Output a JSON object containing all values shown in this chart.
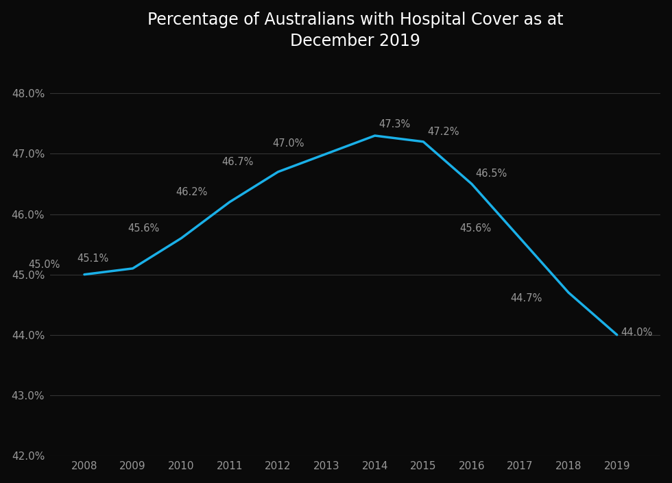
{
  "title": "Percentage of Australians with Hospital Cover as at\nDecember 2019",
  "years": [
    2008,
    2009,
    2010,
    2011,
    2012,
    2013,
    2014,
    2015,
    2016,
    2017,
    2018,
    2019
  ],
  "values": [
    45.0,
    45.1,
    45.6,
    46.2,
    46.7,
    47.0,
    47.3,
    47.2,
    46.5,
    45.6,
    44.7,
    44.0
  ],
  "labels": [
    "45.0%",
    "45.1%",
    "45.6%",
    "46.2%",
    "46.7%",
    "47.0%",
    "47.3%",
    "47.2%",
    "46.5%",
    "45.6%",
    "44.7%",
    "44.0%"
  ],
  "line_color": "#1ab0e8",
  "background_color": "#0a0a0a",
  "text_color": "#999999",
  "grid_color": "#333333",
  "ylim": [
    42.0,
    48.5
  ],
  "yticks": [
    42.0,
    43.0,
    44.0,
    45.0,
    46.0,
    47.0,
    48.0
  ],
  "title_fontsize": 17,
  "label_fontsize": 10.5,
  "tick_fontsize": 11,
  "line_width": 2.5,
  "label_offsets_x": [
    -0.5,
    -0.5,
    -0.45,
    -0.45,
    -0.5,
    -0.45,
    0.08,
    0.08,
    0.08,
    -0.6,
    -0.55,
    0.08
  ],
  "label_offsets_y": [
    0.08,
    0.08,
    0.08,
    0.08,
    0.08,
    0.08,
    0.1,
    0.08,
    0.08,
    0.08,
    -0.18,
    -0.05
  ],
  "label_ha": [
    "right",
    "right",
    "right",
    "right",
    "right",
    "right",
    "left",
    "left",
    "left",
    "right",
    "right",
    "left"
  ]
}
